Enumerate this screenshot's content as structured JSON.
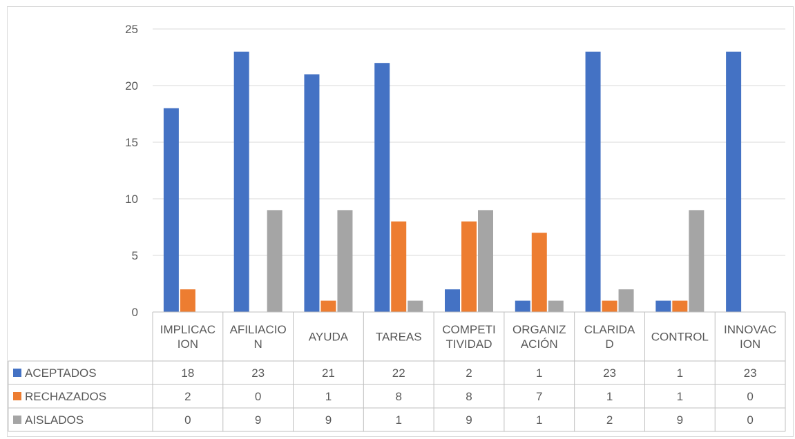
{
  "chart_data": {
    "type": "bar",
    "title": "",
    "xlabel": "",
    "ylabel": "",
    "ylim": [
      0,
      25
    ],
    "y_ticks": [
      0,
      5,
      10,
      15,
      20,
      25
    ],
    "grid": true,
    "legend": "data-table-left",
    "categories": [
      [
        "IMPLICAC",
        "ION"
      ],
      [
        "AFILIACIO",
        "N"
      ],
      [
        "AYUDA"
      ],
      [
        "TAREAS"
      ],
      [
        "COMPETI",
        "TIVIDAD"
      ],
      [
        "ORGANIZ",
        "ACIÓN"
      ],
      [
        "CLARIDA",
        "D"
      ],
      [
        "CONTROL"
      ],
      [
        "INNOVAC",
        "ION"
      ]
    ],
    "series": [
      {
        "name": "ACEPTADOS",
        "color": "#4472c4",
        "values": [
          18,
          23,
          21,
          22,
          2,
          1,
          23,
          1,
          23
        ]
      },
      {
        "name": "RECHAZADOS",
        "color": "#ed7d31",
        "values": [
          2,
          0,
          1,
          8,
          8,
          7,
          1,
          1,
          0
        ]
      },
      {
        "name": "AISLADOS",
        "color": "#a5a5a5",
        "values": [
          0,
          9,
          9,
          1,
          9,
          1,
          2,
          9,
          0
        ]
      }
    ]
  }
}
